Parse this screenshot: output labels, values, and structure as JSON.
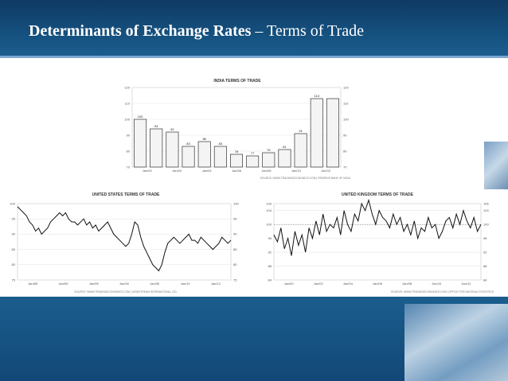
{
  "slide": {
    "title_bold": "Determinants of Exchange Rates",
    "title_rest": " – Terms of Trade",
    "colors": {
      "header": "#15507e",
      "accent": "#7aa6cf"
    }
  },
  "chart_data": [
    {
      "type": "bar",
      "title": "INDIA TERMS OF TRADE",
      "categories": [
        "Jan/00",
        "Jan/01",
        "Jan/02",
        "Jan/03",
        "Jan/04",
        "Jan/05",
        "Jan/06",
        "Jan/07",
        "Jan/08",
        "Jan/09",
        "Jan/10",
        "Jan/11",
        "Jan/12"
      ],
      "values": [
        100,
        94,
        92,
        83,
        86,
        83,
        78,
        77,
        79,
        81,
        91,
        113,
        113
      ],
      "data_labels": [
        "100",
        "94",
        "92",
        "83",
        "86",
        "83",
        "78",
        "77",
        "79",
        "81",
        "91",
        "113",
        ""
      ],
      "xticks": [
        "Jan/00",
        "Jan/02",
        "Jan/04",
        "Jan/06",
        "Jan/08",
        "Jan/10",
        "Jan/12"
      ],
      "ylim": [
        70,
        120
      ],
      "yticks": [
        "70",
        "80",
        "90",
        "100",
        "110",
        "120"
      ],
      "source": "SOURCE: WWW.TRADINGECONOMICS.COM | RESERVE BANK OF INDIA"
    },
    {
      "type": "line",
      "title": "UNITED STATES TERMS OF TRADE",
      "x_start": "1985",
      "x_end": "2013",
      "xticks": [
        "Jan/85",
        "Jan/90",
        "Jan/95",
        "Jan/00",
        "Jan/05",
        "Jan/10",
        "Jan/12"
      ],
      "ylim": [
        75,
        100
      ],
      "yticks": [
        "75",
        "80",
        "85",
        "90",
        "95",
        "100"
      ],
      "values": [
        99,
        98,
        97,
        96,
        94,
        93,
        91,
        92,
        90,
        91,
        92,
        94,
        95,
        96,
        97,
        96,
        97,
        95,
        94,
        94,
        93,
        94,
        95,
        93,
        94,
        92,
        93,
        91,
        92,
        93,
        94,
        92,
        90,
        89,
        88,
        87,
        86,
        87,
        90,
        94,
        93,
        89,
        86,
        84,
        82,
        80,
        79,
        78,
        80,
        84,
        87,
        88,
        89,
        88,
        87,
        88,
        89,
        90,
        88,
        88,
        87,
        89,
        88,
        87,
        86,
        85,
        86,
        87,
        89,
        88,
        87,
        88
      ],
      "source": "SOURCE: WWW.TRADINGECONOMICS.COM | DATASTREAM INTERNATIONAL LTD."
    },
    {
      "type": "line",
      "title": "UNITED KINGDOM TERMS OF TRADE",
      "x_start": "1998",
      "x_end": "2013",
      "xticks": [
        "Jan/00",
        "Jan/02",
        "Jan/04",
        "Jan/06",
        "Jan/08",
        "Jan/10",
        "Jan/12"
      ],
      "ylim": [
        84,
        106
      ],
      "yticks": [
        "84",
        "88",
        "92",
        "96",
        "100",
        "104",
        "106"
      ],
      "values": [
        97,
        95,
        99,
        93,
        96,
        91,
        98,
        94,
        97,
        92,
        99,
        96,
        101,
        97,
        103,
        98,
        100,
        99,
        102,
        97,
        104,
        100,
        98,
        103,
        101,
        106,
        104,
        107,
        103,
        100,
        104,
        102,
        101,
        99,
        103,
        100,
        102,
        98,
        100,
        97,
        101,
        96,
        99,
        98,
        102,
        99,
        100,
        96,
        98,
        101,
        102,
        99,
        103,
        100,
        104,
        101,
        99,
        102,
        98,
        100
      ],
      "source": "SOURCE: WWW.TRADINGECONOMICS.COM | OFFICE FOR NATIONAL STATISTICS"
    }
  ]
}
